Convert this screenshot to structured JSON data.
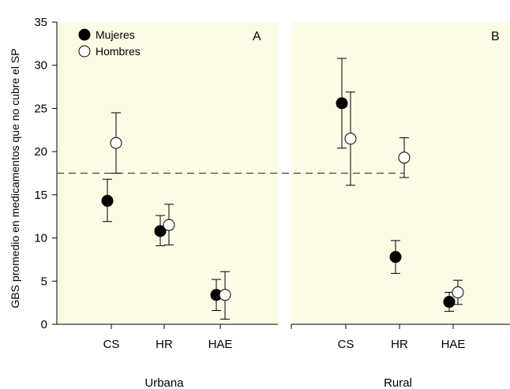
{
  "chart_data": {
    "type": "scatter",
    "ylabel": "GBS promedio en medicamentos que no cubre el SP",
    "ylim": [
      0,
      35
    ],
    "yticks": [
      0,
      5,
      10,
      15,
      20,
      25,
      30,
      35
    ],
    "reference_line": 17.5,
    "colors": {
      "panel_bg": "#fdfae6",
      "marker_filled": "#000000",
      "marker_open": "#ffffff"
    },
    "legend": {
      "placement": "top-left",
      "entries": [
        {
          "label": "Mujeres",
          "marker": "filled-circle"
        },
        {
          "label": "Hombres",
          "marker": "open-circle"
        }
      ]
    },
    "panels": [
      {
        "letter": "A",
        "group_label": "Urbana",
        "categories": [
          "CS",
          "HR",
          "HAE"
        ],
        "series": [
          {
            "name": "Mujeres",
            "values": [
              14.3,
              10.8,
              3.4
            ],
            "err_low": [
              11.9,
              9.1,
              1.6
            ],
            "err_high": [
              16.8,
              12.6,
              5.2
            ]
          },
          {
            "name": "Hombres",
            "values": [
              21.0,
              11.5,
              3.4
            ],
            "err_low": [
              17.5,
              9.2,
              0.6
            ],
            "err_high": [
              24.5,
              13.9,
              6.1
            ]
          }
        ]
      },
      {
        "letter": "B",
        "group_label": "Rural",
        "categories": [
          "CS",
          "HR",
          "HAE"
        ],
        "series": [
          {
            "name": "Mujeres",
            "values": [
              25.6,
              7.8,
              2.6
            ],
            "err_low": [
              20.4,
              5.9,
              1.5
            ],
            "err_high": [
              30.8,
              9.7,
              3.7
            ]
          },
          {
            "name": "Hombres",
            "values": [
              21.5,
              19.3,
              3.7
            ],
            "err_low": [
              16.1,
              17.0,
              2.3
            ],
            "err_high": [
              26.9,
              21.6,
              5.1
            ]
          }
        ]
      }
    ]
  }
}
